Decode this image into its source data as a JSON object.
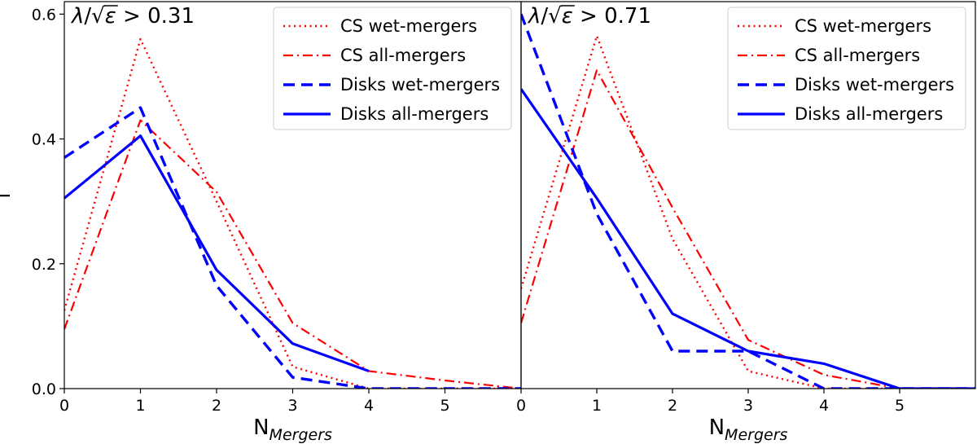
{
  "chart_data": [
    {
      "type": "line",
      "title": "λ/√ε > 0.31",
      "title_parts": {
        "lambda": "λ",
        "slash": "/",
        "sqrt": "√",
        "eps": "ε",
        "cmp": " > 0.31"
      },
      "xlabel": "N",
      "xlabel_sub": "Mergers",
      "ylabel": "f",
      "xlim": [
        0,
        6
      ],
      "ylim": [
        0,
        0.62
      ],
      "xticks": [
        "0",
        "1",
        "2",
        "3",
        "4",
        "5"
      ],
      "yticks": [
        "0.0",
        "0.2",
        "0.4",
        "0.6"
      ],
      "grid": false,
      "legend_position": "top-right",
      "series": [
        {
          "name": "CS wet-mergers",
          "color": "#ff0000",
          "style": "dotted",
          "x": [
            0,
            1,
            2,
            3,
            4,
            5,
            6
          ],
          "y": [
            0.125,
            0.56,
            0.3,
            0.035,
            0.0,
            0.0,
            0.0
          ]
        },
        {
          "name": "CS all-mergers",
          "color": "#ff0000",
          "style": "dashdot",
          "x": [
            0,
            1,
            2,
            3,
            4,
            5,
            6
          ],
          "y": [
            0.095,
            0.43,
            0.315,
            0.105,
            0.028,
            0.013,
            0.0
          ]
        },
        {
          "name": "Disks wet-mergers",
          "color": "#0000ff",
          "style": "dashed",
          "x": [
            0,
            1,
            2,
            3,
            4,
            5,
            6
          ],
          "y": [
            0.37,
            0.45,
            0.165,
            0.018,
            0.0,
            0.0,
            0.0
          ]
        },
        {
          "name": "Disks all-mergers",
          "color": "#0000ff",
          "style": "solid",
          "x": [
            0,
            1,
            2,
            3,
            4
          ],
          "y": [
            0.305,
            0.405,
            0.19,
            0.072,
            0.028
          ]
        }
      ]
    },
    {
      "type": "line",
      "title": "λ/√ε > 0.71",
      "title_parts": {
        "lambda": "λ",
        "slash": "/",
        "sqrt": "√",
        "eps": "ε",
        "cmp": " > 0.71"
      },
      "xlabel": "N",
      "xlabel_sub": "Mergers",
      "ylabel": "",
      "xlim": [
        0,
        6
      ],
      "ylim": [
        0,
        0.62
      ],
      "xticks": [
        "0",
        "1",
        "2",
        "3",
        "4",
        "5"
      ],
      "yticks": [],
      "grid": false,
      "legend_position": "top-right",
      "series": [
        {
          "name": "CS wet-mergers",
          "color": "#ff0000",
          "style": "dotted",
          "x": [
            0,
            1,
            2,
            3,
            4,
            5,
            6
          ],
          "y": [
            0.16,
            0.565,
            0.24,
            0.028,
            0.0,
            0.0,
            0.0
          ]
        },
        {
          "name": "CS all-mergers",
          "color": "#ff0000",
          "style": "dashdot",
          "x": [
            0,
            1,
            2,
            3,
            4,
            5,
            6
          ],
          "y": [
            0.105,
            0.51,
            0.29,
            0.078,
            0.022,
            0.0,
            0.0
          ]
        },
        {
          "name": "Disks wet-mergers",
          "color": "#0000ff",
          "style": "dashed",
          "x": [
            0,
            1,
            2,
            3,
            4,
            5,
            6
          ],
          "y": [
            0.6,
            0.28,
            0.06,
            0.06,
            0.0,
            0.0,
            0.0
          ]
        },
        {
          "name": "Disks all-mergers",
          "color": "#0000ff",
          "style": "solid",
          "x": [
            0,
            1,
            2,
            3,
            4,
            5,
            6
          ],
          "y": [
            0.48,
            0.305,
            0.12,
            0.06,
            0.04,
            0.0,
            0.0
          ]
        }
      ]
    }
  ]
}
